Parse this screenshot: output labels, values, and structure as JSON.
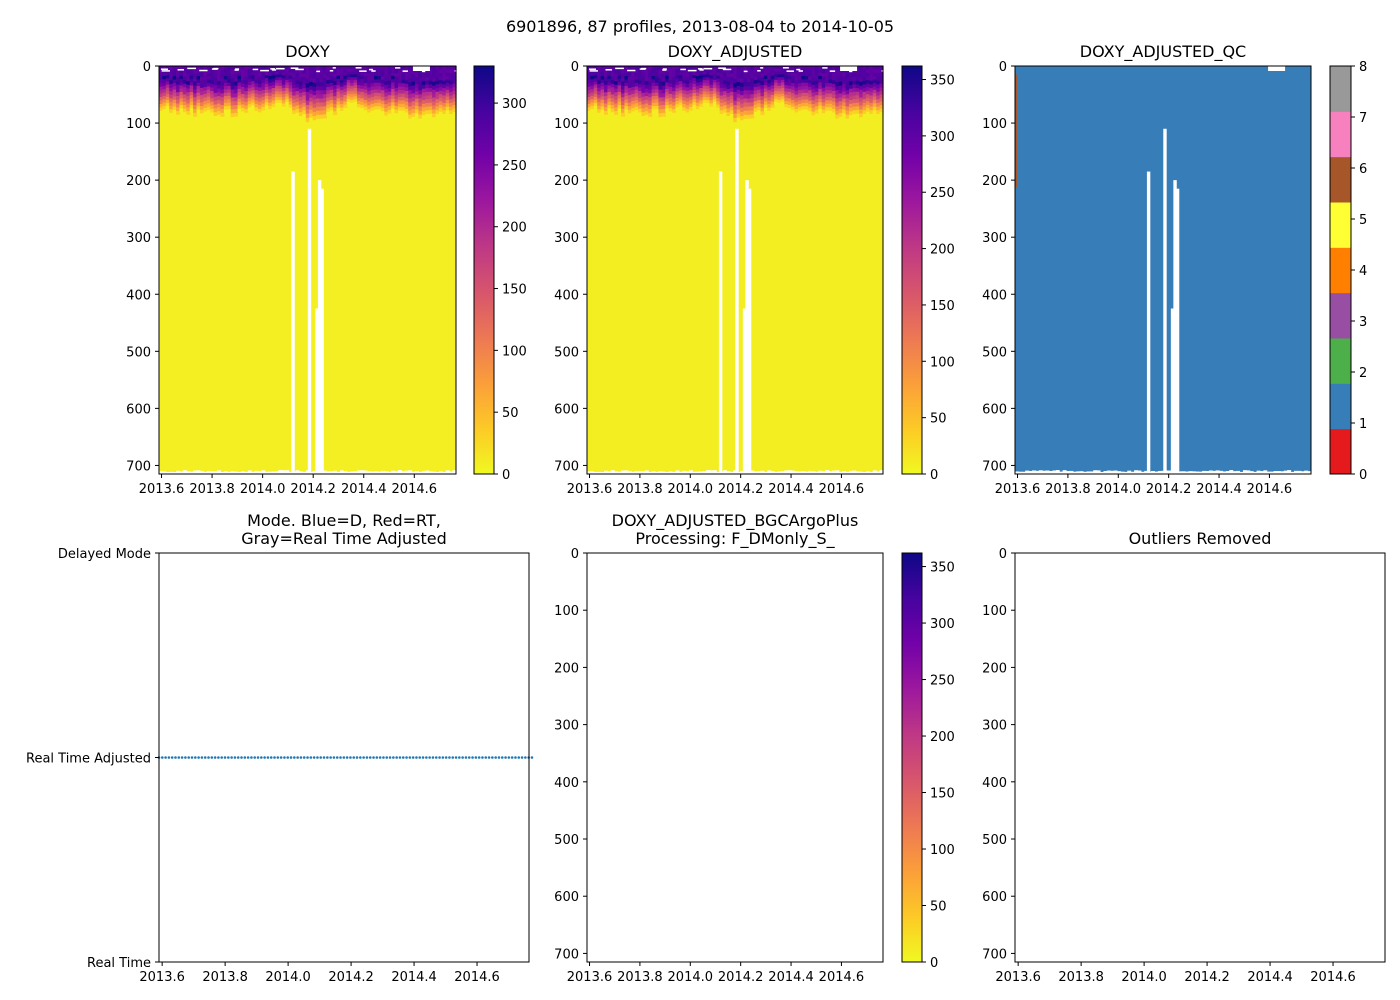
{
  "figure": {
    "suptitle": "6901896, 87 profiles, 2013-08-04 to 2014-10-05"
  },
  "chart_data": [
    {
      "id": "doxy",
      "type": "heatmap",
      "title": "DOXY",
      "x_ticks": [
        "2013.6",
        "2013.8",
        "2014.0",
        "2014.2",
        "2014.4",
        "2014.6"
      ],
      "x_tick_values": [
        2013.6,
        2013.8,
        2014.0,
        2014.2,
        2014.4,
        2014.6
      ],
      "xlim": [
        2013.59,
        2014.765
      ],
      "y_ticks": [
        "0",
        "100",
        "200",
        "300",
        "400",
        "500",
        "600",
        "700"
      ],
      "y_tick_values": [
        0,
        100,
        200,
        300,
        400,
        500,
        600,
        700
      ],
      "ylim": [
        715,
        0
      ],
      "colorbar": {
        "ticks": [
          "0",
          "50",
          "100",
          "150",
          "200",
          "250",
          "300"
        ],
        "tick_values": [
          0,
          50,
          100,
          150,
          200,
          250,
          300
        ],
        "range": [
          0,
          330
        ],
        "colormap": "plasma_r"
      },
      "surface_value": 290,
      "deep_value": 8,
      "gaps": [
        {
          "x": 2014.12,
          "top_depth": 185
        },
        {
          "x": 2014.185,
          "top_depth": 110
        },
        {
          "x": 2014.215,
          "top_depth": 425
        },
        {
          "x": 2014.225,
          "top_depth": 200
        },
        {
          "x": 2014.235,
          "top_depth": 215
        }
      ]
    },
    {
      "id": "doxy_adjusted",
      "type": "heatmap",
      "title": "DOXY_ADJUSTED",
      "x_ticks": [
        "2013.6",
        "2013.8",
        "2014.0",
        "2014.2",
        "2014.4",
        "2014.6"
      ],
      "x_tick_values": [
        2013.6,
        2013.8,
        2014.0,
        2014.2,
        2014.4,
        2014.6
      ],
      "xlim": [
        2013.59,
        2014.765
      ],
      "y_ticks": [
        "0",
        "100",
        "200",
        "300",
        "400",
        "500",
        "600",
        "700"
      ],
      "y_tick_values": [
        0,
        100,
        200,
        300,
        400,
        500,
        600,
        700
      ],
      "ylim": [
        715,
        0
      ],
      "colorbar": {
        "ticks": [
          "0",
          "50",
          "100",
          "150",
          "200",
          "250",
          "300",
          "350"
        ],
        "tick_values": [
          0,
          50,
          100,
          150,
          200,
          250,
          300,
          350
        ],
        "range": [
          0,
          362
        ],
        "colormap": "plasma_r"
      },
      "surface_value": 320,
      "deep_value": 9,
      "gaps": [
        {
          "x": 2014.12,
          "top_depth": 185
        },
        {
          "x": 2014.185,
          "top_depth": 110
        },
        {
          "x": 2014.215,
          "top_depth": 425
        },
        {
          "x": 2014.225,
          "top_depth": 200
        },
        {
          "x": 2014.235,
          "top_depth": 215
        }
      ]
    },
    {
      "id": "doxy_adjusted_qc",
      "type": "heatmap",
      "title": "DOXY_ADJUSTED_QC",
      "x_ticks": [
        "2013.6",
        "2013.8",
        "2014.0",
        "2014.2",
        "2014.4",
        "2014.6"
      ],
      "x_tick_values": [
        2013.6,
        2013.8,
        2014.0,
        2014.2,
        2014.4,
        2014.6
      ],
      "xlim": [
        2013.59,
        2014.765
      ],
      "y_ticks": [
        "0",
        "100",
        "200",
        "300",
        "400",
        "500",
        "600",
        "700"
      ],
      "y_tick_values": [
        0,
        100,
        200,
        300,
        400,
        500,
        600,
        700
      ],
      "ylim": [
        715,
        0
      ],
      "qc_value": 1,
      "colorbar": {
        "ticks": [
          "0",
          "1",
          "2",
          "3",
          "4",
          "5",
          "6",
          "7",
          "8"
        ],
        "tick_values": [
          0,
          1,
          2,
          3,
          4,
          5,
          6,
          7,
          8
        ],
        "range": [
          0,
          8
        ],
        "colors": [
          "#e41a1c",
          "#377eb8",
          "#4daf4a",
          "#984ea3",
          "#ff7f00",
          "#ffff33",
          "#a65628",
          "#f781bf",
          "#999999"
        ]
      },
      "gaps": [
        {
          "x": 2014.12,
          "top_depth": 185
        },
        {
          "x": 2014.185,
          "top_depth": 110
        },
        {
          "x": 2014.215,
          "top_depth": 425
        },
        {
          "x": 2014.225,
          "top_depth": 200
        },
        {
          "x": 2014.235,
          "top_depth": 215
        }
      ]
    },
    {
      "id": "mode",
      "type": "scatter",
      "title_lines": [
        "Mode. Blue=D, Red=RT,",
        "Gray=Real Time Adjusted"
      ],
      "x_ticks": [
        "2013.6",
        "2013.8",
        "2014.0",
        "2014.2",
        "2014.4",
        "2014.6"
      ],
      "x_tick_values": [
        2013.6,
        2013.8,
        2014.0,
        2014.2,
        2014.4,
        2014.6
      ],
      "xlim": [
        2013.59,
        2014.765
      ],
      "y_ticks": [
        "Delayed Mode",
        "Real Time Adjusted",
        "Real Time"
      ],
      "y_tick_values": [
        1,
        0.5,
        0
      ],
      "ylim": [
        0,
        1
      ],
      "series": [
        {
          "name": "Real Time Adjusted",
          "y": 0.5,
          "n_points": 87,
          "x_range": [
            2013.59,
            2014.765
          ],
          "color": "#1f77b4"
        }
      ]
    },
    {
      "id": "doxy_bgc",
      "type": "heatmap",
      "title_lines": [
        "DOXY_ADJUSTED_BGCArgoPlus",
        "Processing: F_DMonly_S_"
      ],
      "x_ticks": [
        "2013.6",
        "2013.8",
        "2014.0",
        "2014.2",
        "2014.4",
        "2014.6"
      ],
      "x_tick_values": [
        2013.6,
        2013.8,
        2014.0,
        2014.2,
        2014.4,
        2014.6
      ],
      "xlim": [
        2013.59,
        2014.765
      ],
      "y_ticks": [
        "0",
        "100",
        "200",
        "300",
        "400",
        "500",
        "600",
        "700"
      ],
      "y_tick_values": [
        0,
        100,
        200,
        300,
        400,
        500,
        600,
        700
      ],
      "ylim": [
        715,
        0
      ],
      "colorbar": {
        "ticks": [
          "0",
          "50",
          "100",
          "150",
          "200",
          "250",
          "300",
          "350"
        ],
        "tick_values": [
          0,
          50,
          100,
          150,
          200,
          250,
          300,
          350
        ],
        "range": [
          0,
          362
        ],
        "colormap": "plasma_r"
      },
      "values": []
    },
    {
      "id": "outliers",
      "type": "scatter",
      "title": "Outliers Removed",
      "x_ticks": [
        "2013.6",
        "2013.8",
        "2014.0",
        "2014.2",
        "2014.4",
        "2014.6"
      ],
      "x_tick_values": [
        2013.6,
        2013.8,
        2014.0,
        2014.2,
        2014.4,
        2014.6
      ],
      "xlim": [
        2013.59,
        2014.765
      ],
      "y_ticks": [
        "0",
        "100",
        "200",
        "300",
        "400",
        "500",
        "600",
        "700"
      ],
      "y_tick_values": [
        0,
        100,
        200,
        300,
        400,
        500,
        600,
        700
      ],
      "ylim": [
        715,
        0
      ],
      "values": []
    }
  ]
}
